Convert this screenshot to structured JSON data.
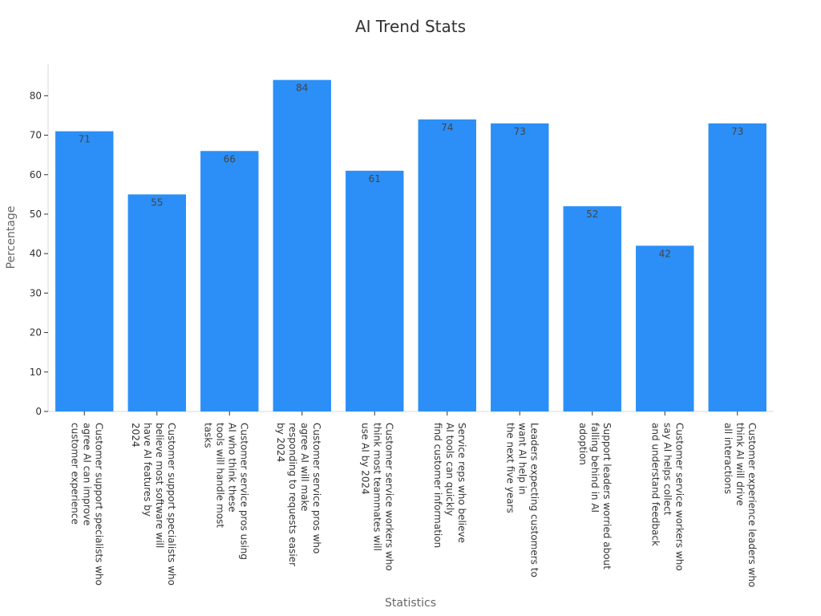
{
  "chart_data": {
    "type": "bar",
    "title": "AI Trend Stats",
    "xlabel": "Statistics",
    "ylabel": "Percentage",
    "ylim": [
      0,
      88
    ],
    "yticks": [
      0,
      10,
      20,
      30,
      40,
      50,
      60,
      70,
      80
    ],
    "bar_color": "#2b8ff7",
    "categories": [
      [
        "Customer support specialists who",
        "agree AI can improve",
        "customer experience"
      ],
      [
        "Customer support specialists who",
        "believe most software will",
        "have AI features by",
        "2024"
      ],
      [
        "Customer service pros using",
        "AI who think these",
        "tools will handle most",
        "tasks"
      ],
      [
        "Customer service pros who",
        "agree AI will make",
        "responding to requests easier",
        "by 2024"
      ],
      [
        "Customer service workers who",
        "think most teammates will",
        "use AI by 2024"
      ],
      [
        "Service reps who believe",
        "AI tools can quickly",
        "find customer information"
      ],
      [
        "Leaders expecting customers to",
        "want AI help in",
        "the next five years"
      ],
      [
        "Support leaders worried about",
        "falling behind in AI",
        "adoption"
      ],
      [
        "Customer service workers who",
        "say AI helps collect",
        "and understand feedback"
      ],
      [
        "Customer experience leaders who",
        "think AI will drive",
        "all interactions"
      ]
    ],
    "values": [
      71,
      55,
      66,
      84,
      61,
      74,
      73,
      52,
      42,
      73
    ]
  }
}
